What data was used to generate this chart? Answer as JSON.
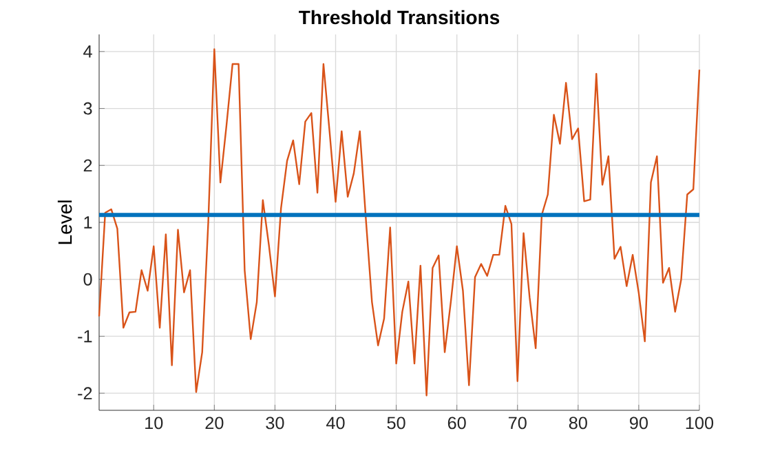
{
  "chart_data": {
    "type": "line",
    "title": "Threshold Transitions",
    "ylabel": "Level",
    "x": [
      1,
      2,
      3,
      4,
      5,
      6,
      7,
      8,
      9,
      10,
      11,
      12,
      13,
      14,
      15,
      16,
      17,
      18,
      19,
      20,
      21,
      22,
      23,
      24,
      25,
      26,
      27,
      28,
      29,
      30,
      31,
      32,
      33,
      34,
      35,
      36,
      37,
      38,
      39,
      40,
      41,
      42,
      43,
      44,
      45,
      46,
      47,
      48,
      49,
      50,
      51,
      52,
      53,
      54,
      55,
      56,
      57,
      58,
      59,
      60,
      61,
      62,
      63,
      64,
      65,
      66,
      67,
      68,
      69,
      70,
      71,
      72,
      73,
      74,
      75,
      76,
      77,
      78,
      79,
      80,
      81,
      82,
      83,
      84,
      85,
      86,
      87,
      88,
      89,
      90,
      91,
      92,
      93,
      94,
      95,
      96,
      97,
      98,
      99,
      100
    ],
    "series": [
      {
        "color": "#d95319",
        "values": [
          -0.65,
          1.17,
          1.23,
          0.89,
          -0.85,
          -0.58,
          -0.57,
          0.16,
          -0.2,
          0.58,
          -0.85,
          0.79,
          -1.51,
          0.87,
          -0.23,
          0.16,
          -1.98,
          -1.28,
          1.0,
          4.04,
          1.7,
          2.7,
          3.78,
          3.78,
          0.16,
          -1.05,
          -0.4,
          1.39,
          0.6,
          -0.3,
          1.25,
          2.08,
          2.44,
          1.67,
          2.77,
          2.92,
          1.52,
          3.78,
          2.6,
          1.36,
          2.6,
          1.45,
          1.86,
          2.6,
          1.05,
          -0.4,
          -1.16,
          -0.69,
          0.91,
          -1.48,
          -0.57,
          -0.04,
          -1.48,
          0.24,
          -2.04,
          0.2,
          0.42,
          -1.28,
          -0.4,
          0.58,
          -0.2,
          -1.86,
          0.04,
          0.27,
          0.06,
          0.43,
          0.43,
          1.29,
          0.97,
          -1.79,
          0.81,
          -0.32,
          -1.21,
          1.13,
          1.49,
          2.89,
          2.38,
          3.45,
          2.46,
          2.65,
          1.37,
          1.4,
          3.61,
          1.66,
          2.16,
          0.36,
          0.57,
          -0.12,
          0.43,
          -0.24,
          -1.09,
          1.7,
          2.16,
          -0.06,
          0.2,
          -0.57,
          0.0,
          1.49,
          1.58,
          3.68
        ]
      }
    ],
    "xlim": [
      1,
      100
    ],
    "ylim": [
      -2.3,
      4.3
    ],
    "xticks": [
      10,
      20,
      30,
      40,
      50,
      60,
      70,
      80,
      90,
      100
    ],
    "yticks": [
      -2,
      -1,
      0,
      1,
      2,
      3,
      4
    ],
    "ref_lines": [
      {
        "axis": "y",
        "value": 1.13,
        "color": "#0072bd"
      }
    ],
    "grid": true
  }
}
